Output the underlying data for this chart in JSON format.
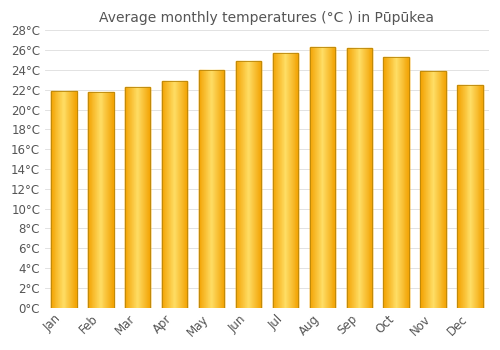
{
  "title": "Average monthly temperatures (°C ) in Pūpūkea",
  "months": [
    "Jan",
    "Feb",
    "Mar",
    "Apr",
    "May",
    "Jun",
    "Jul",
    "Aug",
    "Sep",
    "Oct",
    "Nov",
    "Dec"
  ],
  "temperatures": [
    21.9,
    21.8,
    22.3,
    22.9,
    24.0,
    24.9,
    25.7,
    26.3,
    26.2,
    25.3,
    23.9,
    22.5
  ],
  "bar_color_center": "#FFD966",
  "bar_color_edge": "#F0A000",
  "bar_border_color": "#B8860B",
  "background_color": "#FFFFFF",
  "plot_bg_color": "#FFFFFF",
  "grid_color": "#DDDDDD",
  "text_color": "#555555",
  "ylim": [
    0,
    28
  ],
  "ytick_step": 2,
  "title_fontsize": 10,
  "tick_fontsize": 8.5
}
